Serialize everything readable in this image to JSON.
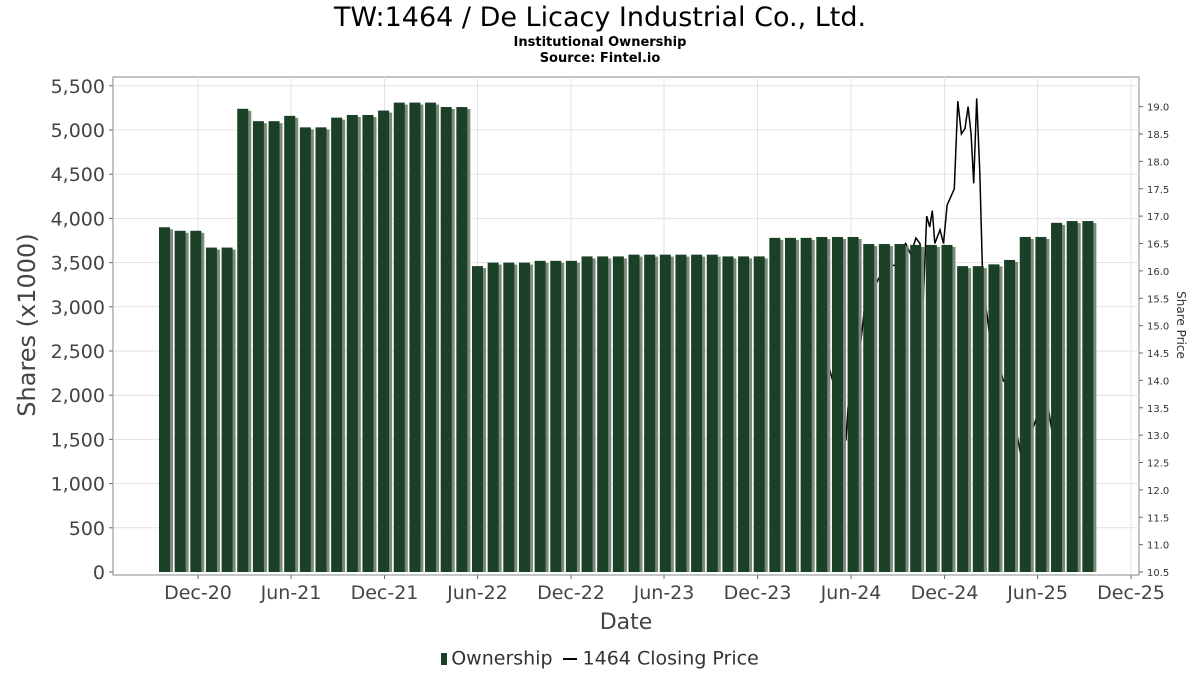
{
  "chart_data": {
    "type": "bar",
    "title": "TW:1464 / De Licacy Industrial Co., Ltd.",
    "subtitle": "Institutional Ownership",
    "source": "Source: Fintel.io",
    "xlabel": "Date",
    "ylabel": "Shares (x1000)",
    "y2label": "Share Price",
    "ylim": [
      0,
      5600
    ],
    "y2lim": [
      10.5,
      19.3
    ],
    "y_ticks": [
      "0",
      "500",
      "1,000",
      "1,500",
      "2,000",
      "2,500",
      "3,000",
      "3,500",
      "4,000",
      "4,500",
      "5,000",
      "5,500"
    ],
    "y2_ticks": [
      "10.5",
      "11.0",
      "11.5",
      "12.0",
      "12.5",
      "13.0",
      "13.5",
      "14.0",
      "14.5",
      "15.0",
      "15.5",
      "16.0",
      "16.5",
      "17.0",
      "17.5",
      "18.0",
      "18.5",
      "19.0"
    ],
    "x_ticks": [
      "Dec-20",
      "Jun-21",
      "Dec-21",
      "Jun-22",
      "Dec-22",
      "Jun-23",
      "Dec-23",
      "Jun-24",
      "Dec-24",
      "Jun-25",
      "Dec-25"
    ],
    "grid": true,
    "legend_position": "bottom",
    "series": [
      {
        "name": "Ownership",
        "kind": "bar",
        "color": "#1a4125",
        "values": [
          3900,
          3860,
          3860,
          3670,
          3670,
          5240,
          5100,
          5100,
          5160,
          5030,
          5030,
          5140,
          5170,
          5170,
          5220,
          5310,
          5310,
          5310,
          5260,
          5260,
          3460,
          3500,
          3500,
          3500,
          3520,
          3520,
          3520,
          3570,
          3570,
          3570,
          3590,
          3590,
          3590,
          3590,
          3590,
          3590,
          3570,
          3570,
          3570,
          3780,
          3780,
          3780,
          3790,
          3790,
          3790,
          3710,
          3710,
          3710,
          3700,
          3700,
          3700,
          3460,
          3460,
          3480,
          3530,
          3790,
          3790,
          3950,
          3970,
          3970
        ]
      },
      {
        "name": "1464 Closing Price",
        "kind": "line",
        "color": "#000000",
        "points": [
          [
            "2024-04-10",
            14.0
          ],
          [
            "2024-04-14",
            14.8
          ],
          [
            "2024-04-20",
            14.2
          ],
          [
            "2024-04-26",
            14.0
          ],
          [
            "2024-05-02",
            13.6
          ],
          [
            "2024-05-08",
            13.2
          ],
          [
            "2024-05-13",
            13.6
          ],
          [
            "2024-05-18",
            13.1
          ],
          [
            "2024-05-22",
            12.9
          ],
          [
            "2024-05-26",
            13.5
          ],
          [
            "2024-06-02",
            13.8
          ],
          [
            "2024-06-12",
            14.1
          ],
          [
            "2024-06-20",
            14.7
          ],
          [
            "2024-06-26",
            15.2
          ],
          [
            "2024-07-02",
            15.9
          ],
          [
            "2024-07-12",
            16.1
          ],
          [
            "2024-07-22",
            15.8
          ],
          [
            "2024-08-02",
            16.0
          ],
          [
            "2024-08-14",
            16.1
          ],
          [
            "2024-08-26",
            16.1
          ],
          [
            "2024-09-06",
            16.4
          ],
          [
            "2024-09-16",
            16.5
          ],
          [
            "2024-09-26",
            16.3
          ],
          [
            "2024-10-06",
            16.6
          ],
          [
            "2024-10-14",
            16.5
          ],
          [
            "2024-10-20",
            15.4
          ],
          [
            "2024-10-27",
            17.0
          ],
          [
            "2024-11-02",
            16.8
          ],
          [
            "2024-11-07",
            17.1
          ],
          [
            "2024-11-12",
            16.5
          ],
          [
            "2024-11-22",
            16.75
          ],
          [
            "2024-11-29",
            16.5
          ],
          [
            "2024-12-06",
            17.2
          ],
          [
            "2024-12-20",
            17.5
          ],
          [
            "2024-12-27",
            19.1
          ],
          [
            "2025-01-03",
            18.5
          ],
          [
            "2025-01-10",
            18.6
          ],
          [
            "2025-01-16",
            19.0
          ],
          [
            "2025-01-22",
            18.5
          ],
          [
            "2025-01-27",
            17.6
          ],
          [
            "2025-02-02",
            19.15
          ],
          [
            "2025-02-08",
            17.8
          ],
          [
            "2025-02-14",
            15.7
          ],
          [
            "2025-02-22",
            15.2
          ],
          [
            "2025-03-02",
            14.6
          ],
          [
            "2025-03-10",
            14.2
          ],
          [
            "2025-03-18",
            14.3
          ],
          [
            "2025-03-26",
            14.0
          ],
          [
            "2025-04-04",
            13.9
          ],
          [
            "2025-04-14",
            13.5
          ],
          [
            "2025-04-22",
            13.0
          ],
          [
            "2025-05-02",
            12.5
          ],
          [
            "2025-05-12",
            12.8
          ],
          [
            "2025-05-22",
            13.1
          ],
          [
            "2025-06-02",
            13.4
          ],
          [
            "2025-06-12",
            13.2
          ],
          [
            "2025-06-22",
            13.5
          ],
          [
            "2025-07-02",
            12.9
          ],
          [
            "2025-07-10",
            11.6
          ],
          [
            "2025-07-18",
            11.2
          ],
          [
            "2025-07-24",
            11.0
          ]
        ]
      }
    ]
  }
}
